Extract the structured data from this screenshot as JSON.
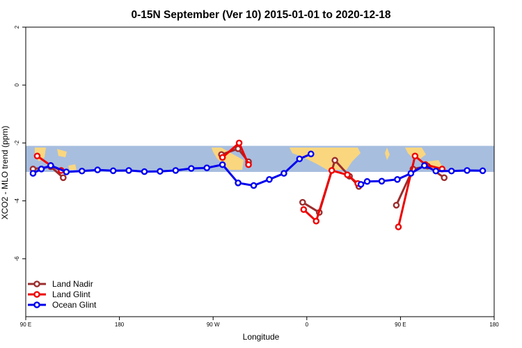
{
  "chart_data": {
    "type": "line",
    "title": "0-15N September (Ver 10)   2015-01-01 to 2020-12-18",
    "xlabel": "Longitude",
    "ylabel": "XCO2 - MLO trend (ppm)",
    "xlim": [
      90,
      540
    ],
    "ylim": [
      -8,
      2
    ],
    "x_ticks": [
      {
        "value": 90,
        "label": "90 E"
      },
      {
        "value": 180,
        "label": "180"
      },
      {
        "value": 270,
        "label": "90 W"
      },
      {
        "value": 360,
        "label": "0"
      },
      {
        "value": 450,
        "label": "90 E"
      },
      {
        "value": 540,
        "label": "180"
      }
    ],
    "y_ticks": [
      {
        "value": 2,
        "label": "2"
      },
      {
        "value": 0,
        "label": "0"
      },
      {
        "value": -2,
        "label": "-2"
      },
      {
        "value": -4,
        "label": "-4"
      },
      {
        "value": -6,
        "label": "-6"
      }
    ],
    "legend_position": "bottom-left",
    "series": [
      {
        "name": "Land Nadir",
        "color": "#9b2d2d",
        "segments": [
          [
            {
              "x": 97,
              "y": -2.9
            },
            {
              "x": 114,
              "y": -2.82
            },
            {
              "x": 126,
              "y": -3.2
            }
          ],
          [
            {
              "x": 278,
              "y": -2.4
            },
            {
              "x": 294,
              "y": -2.2
            },
            {
              "x": 304,
              "y": -2.65
            }
          ],
          [
            {
              "x": 356,
              "y": -4.05
            },
            {
              "x": 372,
              "y": -4.4
            },
            {
              "x": 387,
              "y": -2.6
            },
            {
              "x": 401,
              "y": -3.15
            },
            {
              "x": 410,
              "y": -3.5
            }
          ],
          [
            {
              "x": 446,
              "y": -4.15
            },
            {
              "x": 462,
              "y": -2.9
            },
            {
              "x": 476,
              "y": -2.8
            },
            {
              "x": 492,
              "y": -3.2
            }
          ]
        ]
      },
      {
        "name": "Land Glint",
        "color": "#ee0000",
        "segments": [
          [
            {
              "x": 101,
              "y": -2.45
            },
            {
              "x": 114,
              "y": -2.78
            },
            {
              "x": 124,
              "y": -2.95
            }
          ],
          [
            {
              "x": 279,
              "y": -2.5
            },
            {
              "x": 295,
              "y": -2.0
            },
            {
              "x": 304,
              "y": -2.75
            }
          ],
          [
            {
              "x": 357,
              "y": -4.3
            },
            {
              "x": 369,
              "y": -4.7
            },
            {
              "x": 384,
              "y": -2.95
            },
            {
              "x": 399,
              "y": -3.1
            },
            {
              "x": 409,
              "y": -3.4
            }
          ],
          [
            {
              "x": 448,
              "y": -4.9
            },
            {
              "x": 464,
              "y": -2.45
            },
            {
              "x": 474,
              "y": -2.75
            },
            {
              "x": 490,
              "y": -2.9
            }
          ]
        ]
      },
      {
        "name": "Ocean Glint",
        "color": "#0000ee",
        "segments": [
          [
            {
              "x": 97,
              "y": -3.05
            },
            {
              "x": 105,
              "y": -2.9
            },
            {
              "x": 114,
              "y": -2.78
            },
            {
              "x": 129,
              "y": -3.0
            },
            {
              "x": 144,
              "y": -2.97
            },
            {
              "x": 159,
              "y": -2.93
            },
            {
              "x": 174,
              "y": -2.96
            },
            {
              "x": 189,
              "y": -2.95
            },
            {
              "x": 204,
              "y": -2.99
            },
            {
              "x": 219,
              "y": -2.98
            },
            {
              "x": 234,
              "y": -2.95
            },
            {
              "x": 249,
              "y": -2.88
            },
            {
              "x": 264,
              "y": -2.86
            },
            {
              "x": 279,
              "y": -2.75
            },
            {
              "x": 294,
              "y": -3.38
            },
            {
              "x": 309,
              "y": -3.47
            },
            {
              "x": 324,
              "y": -3.26
            },
            {
              "x": 338,
              "y": -3.05
            },
            {
              "x": 353,
              "y": -2.55
            },
            {
              "x": 364,
              "y": -2.38
            }
          ],
          [
            {
              "x": 412,
              "y": -3.43
            },
            {
              "x": 418,
              "y": -3.33
            },
            {
              "x": 432,
              "y": -3.32
            },
            {
              "x": 447,
              "y": -3.26
            },
            {
              "x": 460,
              "y": -3.05
            },
            {
              "x": 473,
              "y": -2.78
            },
            {
              "x": 484,
              "y": -2.97
            },
            {
              "x": 499,
              "y": -2.97
            },
            {
              "x": 514,
              "y": -2.95
            },
            {
              "x": 529,
              "y": -2.96
            }
          ]
        ]
      }
    ]
  },
  "map_band": {
    "y_top": -2.1,
    "y_bottom": -3.0,
    "ocean_color": "#a7bedf",
    "land_color": "#fad67f"
  }
}
